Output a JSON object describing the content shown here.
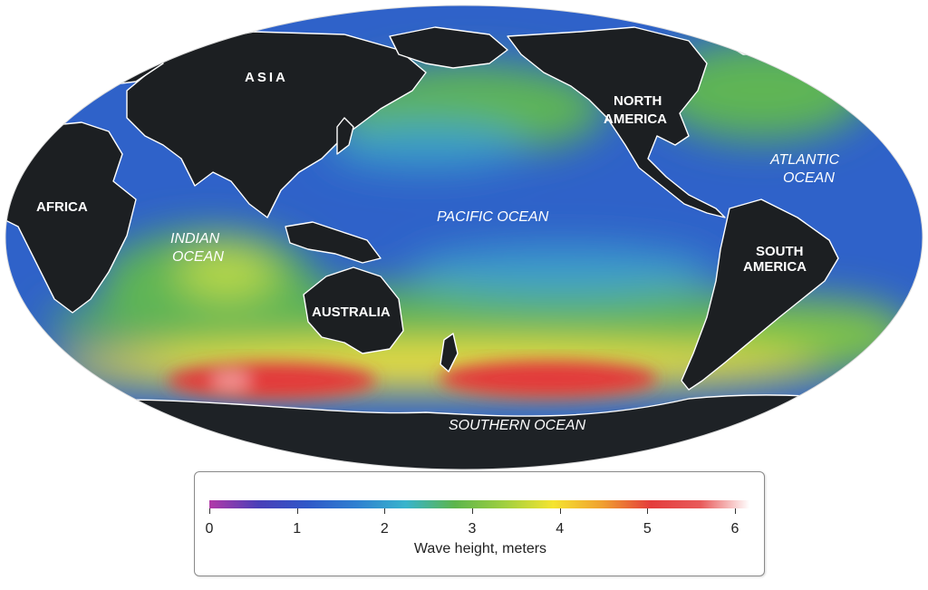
{
  "map": {
    "continents": {
      "asia": "ASIA",
      "africa": "AFRICA",
      "north_america_1": "NORTH",
      "north_america_2": "AMERICA",
      "south_america_1": "SOUTH",
      "south_america_2": "AMERICA",
      "australia": "AUSTRALIA"
    },
    "oceans": {
      "pacific": "PACIFIC OCEAN",
      "indian_1": "INDIAN",
      "indian_2": "OCEAN",
      "atlantic_1": "ATLANTIC",
      "atlantic_2": "OCEAN",
      "southern": "SOUTHERN OCEAN"
    },
    "colors": {
      "land": "#1c1f22",
      "coast": "#ffffff",
      "ocean_low": "#2e60c8",
      "ocean_mid": "#3fa0d0",
      "ocean_green": "#5fb555",
      "ocean_yellow": "#f2e23a",
      "ocean_red": "#e33a3a"
    }
  },
  "legend": {
    "title": "Wave height, meters",
    "ticks": [
      "0",
      "1",
      "2",
      "3",
      "4",
      "5",
      "6"
    ],
    "colors": [
      "#b23aa8",
      "#4a3fb8",
      "#2f58c8",
      "#2f80d0",
      "#38b4cc",
      "#5cb54c",
      "#9fcf40",
      "#f5e430",
      "#f0a030",
      "#e43c3c",
      "#e85a5a",
      "#ffffff"
    ]
  }
}
